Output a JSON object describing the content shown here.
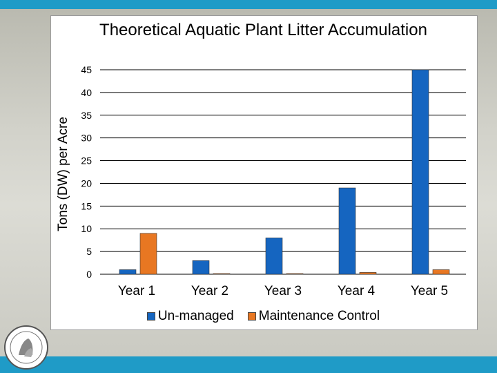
{
  "chart_data": {
    "type": "bar",
    "title": "Theoretical Aquatic Plant Litter Accumulation",
    "ylabel": "Tons (DW) per Acre",
    "xlabel": "",
    "categories": [
      "Year 1",
      "Year 2",
      "Year 3",
      "Year 4",
      "Year 5"
    ],
    "series": [
      {
        "name": "Un-managed",
        "color": "#1565c0",
        "values": [
          1,
          3,
          8,
          19,
          45
        ]
      },
      {
        "name": "Maintenance Control",
        "color": "#e87722",
        "values": [
          9,
          0.1,
          0.1,
          0.4,
          1
        ]
      }
    ],
    "ylim": [
      0,
      45
    ],
    "yticks": [
      0,
      5,
      10,
      15,
      20,
      25,
      30,
      35,
      40,
      45
    ],
    "grid": true,
    "legend": "bottom"
  },
  "theme": {
    "band_color": "#1f9bc7"
  }
}
